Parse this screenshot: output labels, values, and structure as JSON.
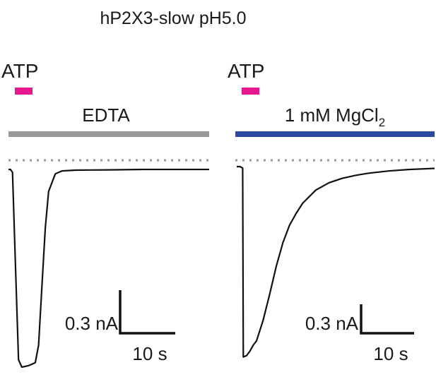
{
  "title": "hP2X3-slow pH5.0",
  "colors": {
    "atp_bar": "#e6178f",
    "edta_bar": "#999999",
    "mg_bar": "#2a4aa0",
    "trace": "#111111",
    "baseline": "#9a9a9a"
  },
  "chart_data": [
    {
      "type": "line",
      "agonist_label": "ATP",
      "condition_label": "EDTA",
      "scale_bar": {
        "current_label": "0.3 nA",
        "time_label": "10 s"
      },
      "series": [
        {
          "values": [
            [
              0.0,
              0.0
            ],
            [
              0.3,
              0.0
            ],
            [
              0.6,
              -0.02
            ],
            [
              1.0,
              -0.6
            ],
            [
              1.5,
              -1.3
            ],
            [
              2.0,
              -1.35
            ],
            [
              3.0,
              -1.34
            ],
            [
              4.0,
              -1.32
            ],
            [
              4.5,
              -1.2
            ],
            [
              5.0,
              -0.8
            ],
            [
              5.5,
              -0.4
            ],
            [
              6.0,
              -0.15
            ],
            [
              7.0,
              -0.03
            ],
            [
              8.0,
              -0.01
            ],
            [
              10.0,
              -0.005
            ],
            [
              15.0,
              -0.003
            ],
            [
              20.0,
              0.0
            ],
            [
              25.0,
              0.0
            ],
            [
              30.0,
              0.0
            ]
          ]
        }
      ]
    },
    {
      "type": "line",
      "agonist_label": "ATP",
      "condition_label": "1 mM MgCl",
      "condition_subscript": "2",
      "scale_bar": {
        "current_label": "0.3 nA",
        "time_label": "10 s"
      },
      "series": [
        {
          "values": [
            [
              0.0,
              0.0
            ],
            [
              0.5,
              0.0
            ],
            [
              0.9,
              -0.01
            ],
            [
              1.0,
              -1.3
            ],
            [
              1.5,
              -1.29
            ],
            [
              2.0,
              -1.26
            ],
            [
              2.5,
              -1.22
            ],
            [
              3.0,
              -1.19
            ],
            [
              4.0,
              -1.05
            ],
            [
              5.0,
              -0.87
            ],
            [
              6.0,
              -0.68
            ],
            [
              7.0,
              -0.52
            ],
            [
              8.0,
              -0.4
            ],
            [
              9.0,
              -0.32
            ],
            [
              10.0,
              -0.25
            ],
            [
              12.0,
              -0.16
            ],
            [
              14.0,
              -0.11
            ],
            [
              16.0,
              -0.08
            ],
            [
              18.0,
              -0.06
            ],
            [
              20.0,
              -0.045
            ],
            [
              23.0,
              -0.03
            ],
            [
              26.0,
              -0.02
            ],
            [
              30.0,
              -0.012
            ]
          ]
        }
      ]
    }
  ]
}
